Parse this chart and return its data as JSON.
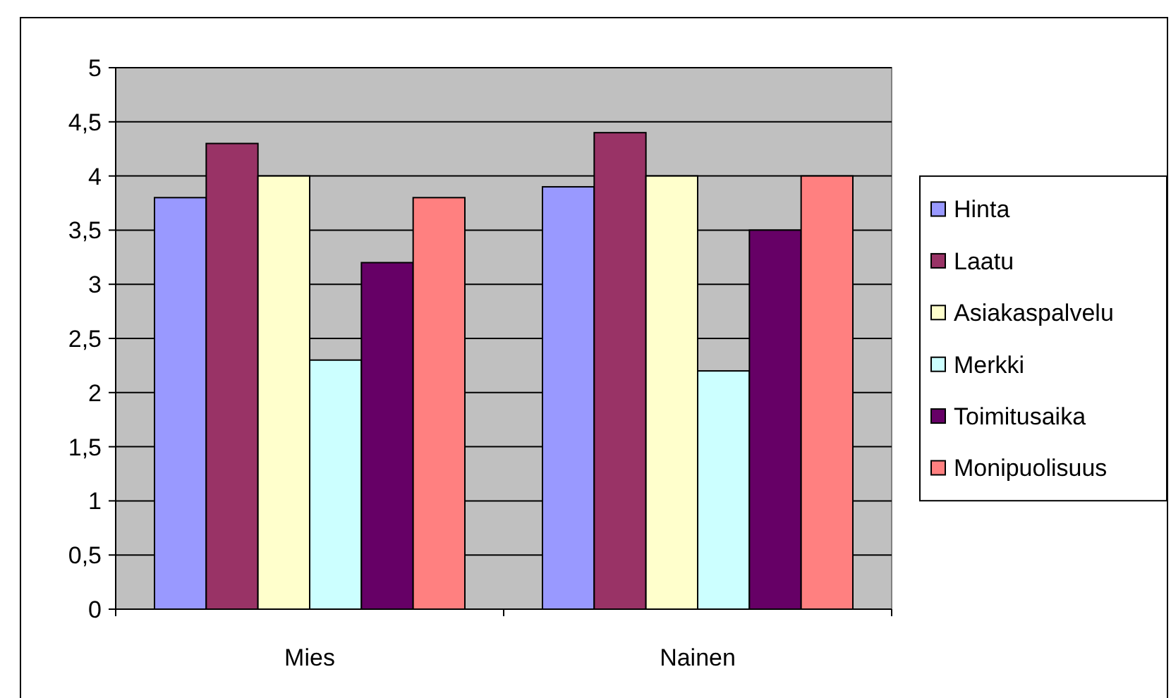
{
  "chart_data": {
    "type": "bar",
    "categories": [
      "Mies",
      "Nainen"
    ],
    "series": [
      {
        "name": "Hinta",
        "color": "#9999ff",
        "values": [
          3.8,
          3.9
        ]
      },
      {
        "name": "Laatu",
        "color": "#993366",
        "values": [
          4.3,
          4.4
        ]
      },
      {
        "name": "Asiakaspalvelu",
        "color": "#ffffcc",
        "values": [
          4.0,
          4.0
        ]
      },
      {
        "name": "Merkki",
        "color": "#ccffff",
        "values": [
          2.3,
          2.2
        ]
      },
      {
        "name": "Toimitusaika",
        "color": "#660066",
        "values": [
          3.2,
          3.5
        ]
      },
      {
        "name": "Monipuolisuus",
        "color": "#ff8080",
        "values": [
          3.8,
          4.0
        ]
      }
    ],
    "ylim": [
      0,
      5
    ],
    "yticks": [
      0,
      {
        "value": 0.5,
        "label": "0,5"
      },
      1,
      {
        "value": 1.5,
        "label": "1,5"
      },
      2,
      {
        "value": 2.5,
        "label": "2,5"
      },
      3,
      {
        "value": 3.5,
        "label": "3,5"
      },
      4,
      {
        "value": 4.5,
        "label": "4,5"
      },
      5
    ],
    "grid": "y",
    "legend": "right"
  }
}
